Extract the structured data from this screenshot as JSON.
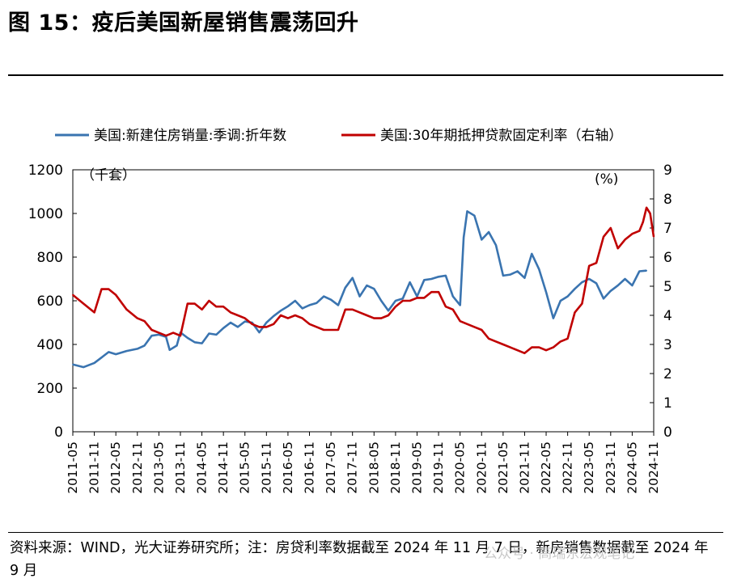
{
  "title": "图 15：疫后美国新屋销售震荡回升",
  "source_note": "资料来源：WIND，光大证券研究所；注：房贷利率数据截至 2024 年 11 月 7 日，新房销售数据截至 2024 年 9 月",
  "watermark": "公众号 · 高瑞东宏观笔记",
  "chart_data": {
    "type": "line",
    "title": "",
    "legend_position": "top",
    "left_axis": {
      "label": "（千套）",
      "range": [
        0,
        1200
      ],
      "ticks": [
        "0",
        "200",
        "400",
        "600",
        "800",
        "1000",
        "1200"
      ]
    },
    "right_axis": {
      "label": "(%)",
      "range": [
        0,
        9
      ],
      "ticks": [
        "0",
        "1",
        "2",
        "3",
        "4",
        "5",
        "6",
        "7",
        "8",
        "9"
      ]
    },
    "x_start": "2011-05",
    "x_end": "2024-11",
    "x_labels": [
      "2011-05",
      "2011-11",
      "2012-05",
      "2012-11",
      "2013-05",
      "2013-11",
      "2014-05",
      "2014-11",
      "2015-05",
      "2015-11",
      "2016-05",
      "2016-11",
      "2017-05",
      "2017-11",
      "2018-05",
      "2018-11",
      "2019-05",
      "2019-11",
      "2020-05",
      "2020-11",
      "2021-05",
      "2021-11",
      "2022-05",
      "2022-11",
      "2023-05",
      "2023-11",
      "2024-05",
      "2024-11"
    ],
    "series": [
      {
        "name": "美国:新建住房销量:季调:折年数",
        "axis": "left",
        "color": "#3a74b0",
        "points": [
          [
            "2011-05",
            308
          ],
          [
            "2011-08",
            296
          ],
          [
            "2011-11",
            315
          ],
          [
            "2012-01",
            340
          ],
          [
            "2012-03",
            365
          ],
          [
            "2012-05",
            355
          ],
          [
            "2012-08",
            370
          ],
          [
            "2012-11",
            380
          ],
          [
            "2013-01",
            395
          ],
          [
            "2013-03",
            440
          ],
          [
            "2013-05",
            445
          ],
          [
            "2013-07",
            435
          ],
          [
            "2013-08",
            375
          ],
          [
            "2013-10",
            395
          ],
          [
            "2013-11",
            455
          ],
          [
            "2014-01",
            430
          ],
          [
            "2014-03",
            410
          ],
          [
            "2014-05",
            405
          ],
          [
            "2014-07",
            450
          ],
          [
            "2014-09",
            445
          ],
          [
            "2014-11",
            475
          ],
          [
            "2015-01",
            500
          ],
          [
            "2015-03",
            480
          ],
          [
            "2015-05",
            505
          ],
          [
            "2015-07",
            500
          ],
          [
            "2015-09",
            455
          ],
          [
            "2015-11",
            500
          ],
          [
            "2016-01",
            530
          ],
          [
            "2016-03",
            555
          ],
          [
            "2016-05",
            575
          ],
          [
            "2016-07",
            600
          ],
          [
            "2016-09",
            565
          ],
          [
            "2016-11",
            580
          ],
          [
            "2017-01",
            590
          ],
          [
            "2017-03",
            620
          ],
          [
            "2017-05",
            605
          ],
          [
            "2017-07",
            580
          ],
          [
            "2017-09",
            660
          ],
          [
            "2017-11",
            705
          ],
          [
            "2018-01",
            620
          ],
          [
            "2018-03",
            670
          ],
          [
            "2018-05",
            655
          ],
          [
            "2018-07",
            600
          ],
          [
            "2018-09",
            555
          ],
          [
            "2018-11",
            600
          ],
          [
            "2019-01",
            610
          ],
          [
            "2019-03",
            685
          ],
          [
            "2019-05",
            620
          ],
          [
            "2019-07",
            695
          ],
          [
            "2019-09",
            700
          ],
          [
            "2019-11",
            710
          ],
          [
            "2020-01",
            715
          ],
          [
            "2020-03",
            620
          ],
          [
            "2020-05",
            580
          ],
          [
            "2020-06",
            890
          ],
          [
            "2020-07",
            1010
          ],
          [
            "2020-09",
            990
          ],
          [
            "2020-11",
            880
          ],
          [
            "2021-01",
            915
          ],
          [
            "2021-03",
            855
          ],
          [
            "2021-05",
            715
          ],
          [
            "2021-07",
            720
          ],
          [
            "2021-09",
            735
          ],
          [
            "2021-11",
            705
          ],
          [
            "2022-01",
            815
          ],
          [
            "2022-03",
            745
          ],
          [
            "2022-05",
            640
          ],
          [
            "2022-07",
            520
          ],
          [
            "2022-09",
            600
          ],
          [
            "2022-11",
            620
          ],
          [
            "2023-01",
            655
          ],
          [
            "2023-03",
            685
          ],
          [
            "2023-05",
            700
          ],
          [
            "2023-07",
            680
          ],
          [
            "2023-09",
            610
          ],
          [
            "2023-11",
            645
          ],
          [
            "2024-01",
            670
          ],
          [
            "2024-03",
            700
          ],
          [
            "2024-05",
            670
          ],
          [
            "2024-07",
            735
          ],
          [
            "2024-09",
            738
          ]
        ]
      },
      {
        "name": "美国:30年期抵押贷款固定利率（右轴）",
        "axis": "right",
        "color": "#c00000",
        "points": [
          [
            "2011-05",
            4.7
          ],
          [
            "2011-08",
            4.4
          ],
          [
            "2011-11",
            4.1
          ],
          [
            "2012-01",
            4.9
          ],
          [
            "2012-03",
            4.9
          ],
          [
            "2012-05",
            4.7
          ],
          [
            "2012-08",
            4.2
          ],
          [
            "2012-11",
            3.9
          ],
          [
            "2013-01",
            3.8
          ],
          [
            "2013-03",
            3.5
          ],
          [
            "2013-05",
            3.4
          ],
          [
            "2013-07",
            3.3
          ],
          [
            "2013-09",
            3.4
          ],
          [
            "2013-11",
            3.3
          ],
          [
            "2014-01",
            4.4
          ],
          [
            "2014-03",
            4.4
          ],
          [
            "2014-05",
            4.2
          ],
          [
            "2014-07",
            4.5
          ],
          [
            "2014-09",
            4.3
          ],
          [
            "2014-11",
            4.3
          ],
          [
            "2015-01",
            4.1
          ],
          [
            "2015-03",
            4.0
          ],
          [
            "2015-05",
            3.9
          ],
          [
            "2015-07",
            3.7
          ],
          [
            "2015-09",
            3.6
          ],
          [
            "2015-11",
            3.6
          ],
          [
            "2016-01",
            3.7
          ],
          [
            "2016-03",
            4.0
          ],
          [
            "2016-05",
            3.9
          ],
          [
            "2016-07",
            4.0
          ],
          [
            "2016-09",
            3.9
          ],
          [
            "2016-11",
            3.7
          ],
          [
            "2017-01",
            3.6
          ],
          [
            "2017-03",
            3.5
          ],
          [
            "2017-05",
            3.5
          ],
          [
            "2017-07",
            3.5
          ],
          [
            "2017-09",
            4.2
          ],
          [
            "2017-11",
            4.2
          ],
          [
            "2018-01",
            4.1
          ],
          [
            "2018-03",
            4.0
          ],
          [
            "2018-05",
            3.9
          ],
          [
            "2018-07",
            3.9
          ],
          [
            "2018-09",
            4.0
          ],
          [
            "2018-11",
            4.3
          ],
          [
            "2019-01",
            4.5
          ],
          [
            "2019-03",
            4.5
          ],
          [
            "2019-05",
            4.6
          ],
          [
            "2019-07",
            4.6
          ],
          [
            "2019-09",
            4.8
          ],
          [
            "2019-11",
            4.8
          ],
          [
            "2020-01",
            4.3
          ],
          [
            "2020-03",
            4.2
          ],
          [
            "2020-05",
            3.8
          ],
          [
            "2020-07",
            3.7
          ],
          [
            "2020-09",
            3.6
          ],
          [
            "2020-11",
            3.5
          ],
          [
            "2021-01",
            3.2
          ],
          [
            "2021-03",
            3.1
          ],
          [
            "2021-05",
            3.0
          ],
          [
            "2021-07",
            2.9
          ],
          [
            "2021-09",
            2.8
          ],
          [
            "2021-11",
            2.7
          ],
          [
            "2022-01",
            2.9
          ],
          [
            "2022-03",
            2.9
          ],
          [
            "2022-05",
            2.8
          ],
          [
            "2022-07",
            2.9
          ],
          [
            "2022-09",
            3.1
          ],
          [
            "2022-11",
            3.2
          ],
          [
            "2023-01",
            4.1
          ],
          [
            "2023-03",
            4.4
          ],
          [
            "2023-05",
            5.7
          ],
          [
            "2023-07",
            5.8
          ],
          [
            "2023-09",
            6.7
          ],
          [
            "2023-11",
            7.0
          ],
          [
            "2024-01",
            6.3
          ],
          [
            "2024-03",
            6.6
          ],
          [
            "2024-05",
            6.8
          ],
          [
            "2024-07",
            6.9
          ],
          [
            "2024-08",
            7.2
          ],
          [
            "2024-09",
            7.7
          ],
          [
            "2024-10",
            7.5
          ],
          [
            "2024-11",
            6.7
          ]
        ]
      }
    ]
  }
}
